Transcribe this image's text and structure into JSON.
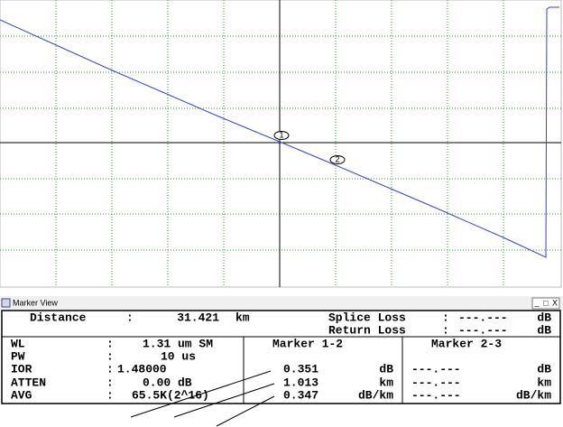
{
  "plot": {
    "markers": [
      "1",
      "2"
    ]
  },
  "window": {
    "title": "Marker View",
    "buttons": [
      "_",
      "□",
      "X"
    ]
  },
  "separator": ":",
  "summary": {
    "distance_label": "Distance",
    "distance_value": "31.421",
    "distance_unit": "km",
    "splice_loss_label": "Splice Loss",
    "splice_loss_value": "---.---",
    "splice_loss_unit": "dB",
    "return_loss_label": "Return Loss",
    "return_loss_value": "---.---",
    "return_loss_unit": "dB"
  },
  "settings": [
    {
      "label": "WL",
      "value": "1.31 um SM"
    },
    {
      "label": "PW",
      "value": "10 us"
    },
    {
      "label": "IOR",
      "value": "1.48000"
    },
    {
      "label": "ATTEN",
      "value": "0.00 dB"
    },
    {
      "label": "AVG",
      "value": "65.5K(2^16)"
    }
  ],
  "marker_1_2": {
    "title": "Marker 1-2",
    "rows": [
      {
        "value": "0.351",
        "unit": "dB"
      },
      {
        "value": "1.013",
        "unit": "km"
      },
      {
        "value": "0.347",
        "unit": "dB/km"
      }
    ]
  },
  "marker_2_3": {
    "title": "Marker 2-3",
    "rows": [
      {
        "value": "---.---",
        "unit": "dB"
      },
      {
        "value": "---.---",
        "unit": "km"
      },
      {
        "value": "---.---",
        "unit": "dB/km"
      }
    ]
  }
}
